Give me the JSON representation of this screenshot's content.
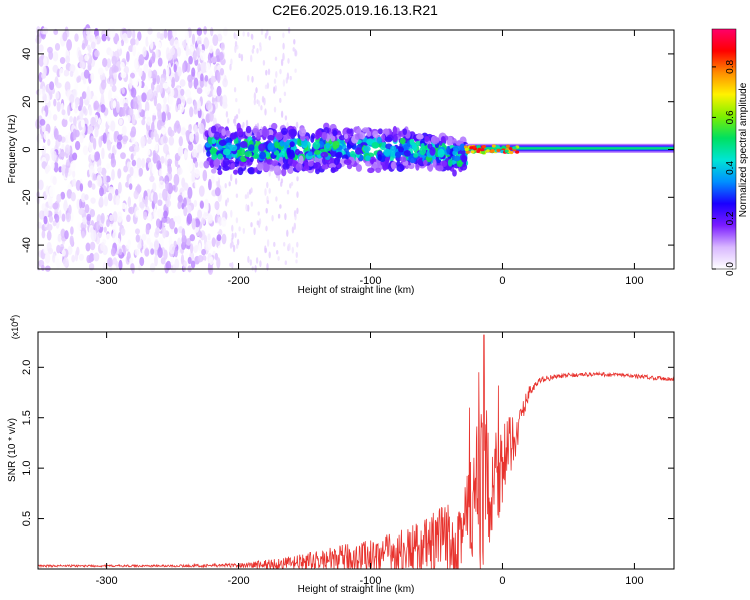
{
  "title": "C2E6.2025.019.16.13.R21",
  "chart_data": [
    {
      "type": "heatmap",
      "name": "spectrogram",
      "xlabel": "Height of straight line (km)",
      "ylabel": "Frequency (Hz)",
      "xlim": [
        -352,
        130
      ],
      "ylim": [
        -50,
        50
      ],
      "xticks": [
        -300,
        -200,
        -100,
        0,
        100
      ],
      "yticks": [
        -40,
        -20,
        0,
        20,
        40
      ],
      "xtick_labels": [
        "-300",
        "-200",
        "-100",
        "0",
        "100"
      ],
      "ytick_labels": [
        "-40",
        "-20",
        "0",
        "20",
        "40"
      ],
      "colorbar": {
        "label": "Normalized spectral amplitude",
        "range": [
          0.0,
          0.95
        ],
        "ticks": [
          0.0,
          0.2,
          0.4,
          0.6,
          0.8
        ],
        "tick_labels": [
          "0.0",
          "0.2",
          "0.4",
          "0.6",
          "0.8"
        ],
        "colormap": [
          "#ffffff",
          "#d9b8ff",
          "#7a1cff",
          "#1a00ff",
          "#0090ff",
          "#00e5d5",
          "#00e060",
          "#7ff000",
          "#fff200",
          "#ff8c00",
          "#ff0000",
          "#ff006a"
        ]
      },
      "regions": [
        {
          "label": "noise",
          "x": [
            -352,
            -210
          ],
          "f": [
            -50,
            50
          ],
          "amp": [
            0.0,
            0.12
          ]
        },
        {
          "label": "transition",
          "x": [
            -210,
            -155
          ],
          "f": [
            -50,
            50
          ],
          "amp": [
            0.0,
            0.05
          ]
        },
        {
          "label": "band",
          "x": [
            -225,
            -28
          ],
          "f": [
            -8,
            8
          ],
          "amp": [
            0.1,
            0.45
          ]
        },
        {
          "label": "tone",
          "x": [
            -28,
            130
          ],
          "f": [
            -1.5,
            2.5
          ],
          "amp": [
            0.3,
            0.9
          ]
        }
      ]
    },
    {
      "type": "line",
      "name": "snr",
      "xlabel": "Height of straight line (km)",
      "ylabel": "SNR (10 * v/v)",
      "scale_label": "(x10",
      "scale_exp": "4",
      "xlim": [
        -352,
        130
      ],
      "ylim": [
        0,
        2.35
      ],
      "xticks": [
        -300,
        -200,
        -100,
        0,
        100
      ],
      "yticks": [
        0.5,
        1.0,
        1.5,
        2.0
      ],
      "xtick_labels": [
        "-300",
        "-200",
        "-100",
        "0",
        "100"
      ],
      "ytick_labels": [
        "0.5",
        "1.0",
        "1.5",
        "2.0"
      ],
      "color": "#e8332e",
      "envelope": {
        "x": [
          -352,
          -250,
          -200,
          -180,
          -160,
          -140,
          -120,
          -100,
          -80,
          -60,
          -40,
          -30,
          -20,
          -15,
          -10,
          -5,
          0,
          10,
          20,
          30,
          50,
          70,
          90,
          110,
          130
        ],
        "base": [
          0.03,
          0.03,
          0.035,
          0.04,
          0.05,
          0.07,
          0.09,
          0.11,
          0.14,
          0.18,
          0.25,
          0.35,
          0.55,
          0.7,
          0.8,
          0.9,
          1.0,
          1.3,
          1.75,
          1.88,
          1.92,
          1.93,
          1.92,
          1.9,
          1.88
        ],
        "noise": [
          0.01,
          0.01,
          0.02,
          0.05,
          0.07,
          0.1,
          0.14,
          0.18,
          0.22,
          0.28,
          0.42,
          0.55,
          0.8,
          0.8,
          0.7,
          0.55,
          0.45,
          0.2,
          0.06,
          0.03,
          0.02,
          0.02,
          0.02,
          0.02,
          0.02
        ],
        "peaks": [
          {
            "x": -14,
            "y": 2.32
          },
          {
            "x": -18,
            "y": 1.95
          },
          {
            "x": -3,
            "y": 1.82
          },
          {
            "x": -25,
            "y": 1.6
          }
        ]
      }
    }
  ]
}
